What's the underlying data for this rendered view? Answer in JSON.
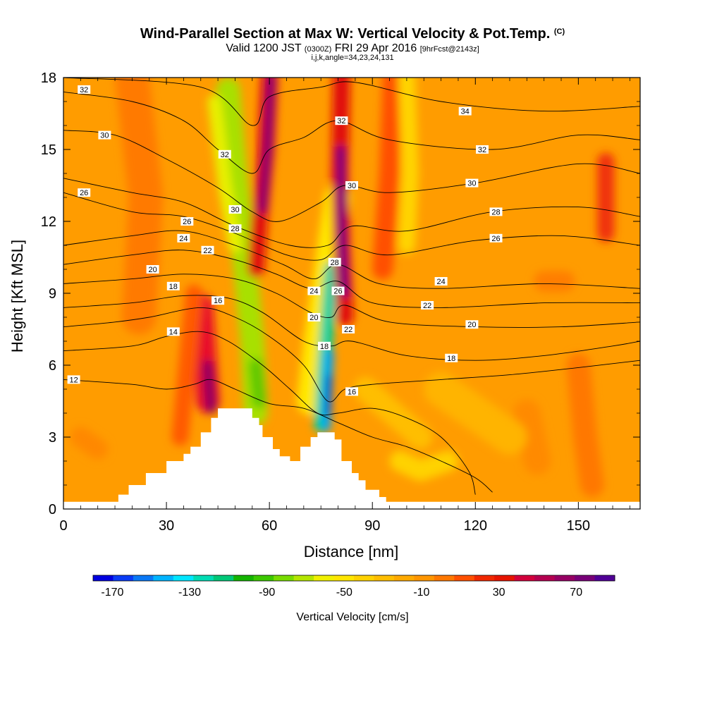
{
  "header": {
    "title": "Wind-Parallel Section at Max W: Vertical Velocity & Pot.Temp.",
    "copyright": "(C)",
    "valid_prefix": "Valid 1200 JST",
    "valid_utc": "(0300Z)",
    "valid_date": "FRI 29 Apr 2016",
    "forecast": "[9hrFcst@2143z]",
    "indices": "i,j,k,angle=34,23,24,131"
  },
  "chart_data": {
    "type": "contour cross-section (filled vertical velocity + potential temperature isolines)",
    "x_axis": {
      "label": "Distance [nm]",
      "range": [
        0,
        168
      ],
      "ticks": [
        0,
        30,
        60,
        90,
        120,
        150
      ]
    },
    "y_axis": {
      "label": "Height [Kft MSL]",
      "range": [
        0,
        18
      ],
      "ticks": [
        0,
        3,
        6,
        9,
        12,
        15,
        18
      ]
    },
    "colorbar": {
      "label": "Vertical Velocity [cm/s]",
      "tick_labels": [
        "-170",
        "-130",
        "-90",
        "-50",
        "-10",
        "30",
        "70"
      ],
      "range": [
        -180,
        90
      ],
      "colors": [
        "#0000e0",
        "#0a3cf5",
        "#0a78f5",
        "#00b4ff",
        "#00e6ff",
        "#00dcb4",
        "#00c878",
        "#14b400",
        "#3cc800",
        "#78dc00",
        "#b4e600",
        "#f0f000",
        "#ffe600",
        "#ffd200",
        "#ffbe00",
        "#ffaa00",
        "#ff9600",
        "#ff7800",
        "#ff5000",
        "#f02800",
        "#e61400",
        "#d2003c",
        "#b40050",
        "#960064",
        "#780078",
        "#500096"
      ]
    },
    "terrain_kft": [
      [
        0,
        0.3
      ],
      [
        14,
        0.3
      ],
      [
        16,
        0.6
      ],
      [
        19,
        1.0
      ],
      [
        24,
        1.5
      ],
      [
        30,
        2.0
      ],
      [
        35,
        2.3
      ],
      [
        37,
        2.6
      ],
      [
        40,
        3.2
      ],
      [
        43,
        3.8
      ],
      [
        45,
        4.2
      ],
      [
        52,
        4.2
      ],
      [
        55,
        3.8
      ],
      [
        57,
        3.5
      ],
      [
        58,
        3.0
      ],
      [
        61,
        2.5
      ],
      [
        63,
        2.2
      ],
      [
        66,
        2.0
      ],
      [
        69,
        2.6
      ],
      [
        72,
        3.0
      ],
      [
        74,
        3.2
      ],
      [
        77,
        3.2
      ],
      [
        79,
        2.9
      ],
      [
        81,
        2.0
      ],
      [
        84,
        1.5
      ],
      [
        86,
        1.2
      ],
      [
        88,
        0.8
      ],
      [
        92,
        0.5
      ],
      [
        94,
        0.3
      ],
      [
        168,
        0.3
      ]
    ],
    "theta_isolines": [
      {
        "level": "12",
        "points": [
          [
            0,
            5.4
          ],
          [
            20,
            5.2
          ],
          [
            30,
            5.0
          ],
          [
            38,
            5.2
          ],
          [
            43,
            5.4
          ],
          [
            50,
            5.0
          ],
          [
            60,
            4.4
          ],
          [
            70,
            4.2
          ],
          [
            80,
            3.6
          ],
          [
            90,
            3.0
          ],
          [
            100,
            2.6
          ],
          [
            110,
            2.0
          ],
          [
            120,
            1.3
          ],
          [
            125,
            0.7
          ]
        ]
      },
      {
        "level": "14",
        "points": [
          [
            0,
            6.6
          ],
          [
            20,
            6.8
          ],
          [
            30,
            7.2
          ],
          [
            40,
            7.4
          ],
          [
            48,
            7.0
          ],
          [
            58,
            6.0
          ],
          [
            66,
            5.0
          ],
          [
            74,
            4.0
          ],
          [
            80,
            4.0
          ],
          [
            90,
            4.2
          ],
          [
            100,
            3.8
          ],
          [
            110,
            3.0
          ],
          [
            118,
            1.6
          ],
          [
            120,
            0.6
          ]
        ]
      },
      {
        "level": "16",
        "points": [
          [
            0,
            7.6
          ],
          [
            15,
            7.8
          ],
          [
            25,
            8.0
          ],
          [
            40,
            8.4
          ],
          [
            50,
            8.0
          ],
          [
            60,
            7.2
          ],
          [
            70,
            6.0
          ],
          [
            77,
            4.5
          ],
          [
            82,
            5.0
          ],
          [
            90,
            5.2
          ],
          [
            110,
            5.4
          ],
          [
            130,
            5.6
          ],
          [
            150,
            5.9
          ],
          [
            168,
            6.2
          ]
        ]
      },
      {
        "level": "18",
        "points": [
          [
            0,
            8.4
          ],
          [
            20,
            8.6
          ],
          [
            35,
            8.9
          ],
          [
            48,
            8.8
          ],
          [
            58,
            8.2
          ],
          [
            70,
            7.0
          ],
          [
            78,
            6.8
          ],
          [
            84,
            7.0
          ],
          [
            100,
            6.4
          ],
          [
            120,
            6.2
          ],
          [
            140,
            6.4
          ],
          [
            160,
            6.8
          ],
          [
            168,
            7.0
          ]
        ]
      },
      {
        "level": "20",
        "points": [
          [
            0,
            9.4
          ],
          [
            20,
            9.6
          ],
          [
            35,
            9.8
          ],
          [
            50,
            9.6
          ],
          [
            62,
            9.0
          ],
          [
            72,
            8.2
          ],
          [
            78,
            8.0
          ],
          [
            82,
            8.5
          ],
          [
            95,
            7.8
          ],
          [
            120,
            7.6
          ],
          [
            145,
            7.6
          ],
          [
            168,
            7.8
          ]
        ]
      },
      {
        "level": "22",
        "points": [
          [
            0,
            10.2
          ],
          [
            20,
            10.6
          ],
          [
            35,
            10.8
          ],
          [
            50,
            10.4
          ],
          [
            62,
            9.8
          ],
          [
            72,
            9.2
          ],
          [
            80,
            9.5
          ],
          [
            90,
            8.6
          ],
          [
            110,
            8.4
          ],
          [
            140,
            8.6
          ],
          [
            168,
            8.6
          ]
        ]
      },
      {
        "level": "24",
        "points": [
          [
            0,
            11.0
          ],
          [
            20,
            11.4
          ],
          [
            35,
            11.6
          ],
          [
            50,
            11.0
          ],
          [
            64,
            10.2
          ],
          [
            73,
            9.6
          ],
          [
            80,
            10.2
          ],
          [
            92,
            9.4
          ],
          [
            110,
            9.2
          ],
          [
            140,
            9.4
          ],
          [
            168,
            9.2
          ]
        ]
      },
      {
        "level": "26",
        "points": [
          [
            0,
            13.2
          ],
          [
            20,
            12.4
          ],
          [
            35,
            12.2
          ],
          [
            50,
            11.5
          ],
          [
            65,
            10.6
          ],
          [
            75,
            10.4
          ],
          [
            82,
            11.0
          ],
          [
            95,
            10.6
          ],
          [
            120,
            11.2
          ],
          [
            145,
            11.4
          ],
          [
            168,
            11.0
          ]
        ]
      },
      {
        "level": "28",
        "points": [
          [
            0,
            13.8
          ],
          [
            20,
            13.2
          ],
          [
            35,
            12.8
          ],
          [
            50,
            11.8
          ],
          [
            66,
            11.0
          ],
          [
            77,
            11.0
          ],
          [
            84,
            11.8
          ],
          [
            100,
            11.6
          ],
          [
            125,
            12.4
          ],
          [
            150,
            12.6
          ],
          [
            168,
            12.2
          ]
        ]
      },
      {
        "level": "30",
        "points": [
          [
            0,
            15.8
          ],
          [
            15,
            15.6
          ],
          [
            30,
            14.6
          ],
          [
            45,
            13.4
          ],
          [
            55,
            12.4
          ],
          [
            63,
            12.0
          ],
          [
            75,
            12.8
          ],
          [
            82,
            13.5
          ],
          [
            95,
            13.2
          ],
          [
            120,
            13.6
          ],
          [
            150,
            14.4
          ],
          [
            168,
            14.0
          ]
        ]
      },
      {
        "level": "32",
        "points": [
          [
            0,
            17.4
          ],
          [
            20,
            17.0
          ],
          [
            35,
            16.2
          ],
          [
            45,
            15.0
          ],
          [
            55,
            14.0
          ],
          [
            60,
            15.0
          ],
          [
            70,
            15.5
          ],
          [
            80,
            16.2
          ],
          [
            95,
            15.4
          ],
          [
            125,
            15.0
          ],
          [
            150,
            15.6
          ],
          [
            168,
            15.4
          ]
        ]
      },
      {
        "level": "34",
        "points": [
          [
            0,
            18.0
          ],
          [
            40,
            17.6
          ],
          [
            55,
            16.0
          ],
          [
            60,
            17.2
          ],
          [
            75,
            17.6
          ],
          [
            85,
            17.8
          ],
          [
            110,
            17.0
          ],
          [
            140,
            16.6
          ],
          [
            168,
            16.8
          ]
        ]
      }
    ],
    "theta_label_positions": [
      {
        "text": "32",
        "x": 6,
        "y": 17.5
      },
      {
        "text": "30",
        "x": 12,
        "y": 15.6
      },
      {
        "text": "26",
        "x": 6,
        "y": 13.2
      },
      {
        "text": "32",
        "x": 47,
        "y": 14.8
      },
      {
        "text": "30",
        "x": 50,
        "y": 12.5
      },
      {
        "text": "26",
        "x": 36,
        "y": 12.0
      },
      {
        "text": "28",
        "x": 50,
        "y": 11.7
      },
      {
        "text": "24",
        "x": 35,
        "y": 11.3
      },
      {
        "text": "22",
        "x": 42,
        "y": 10.8
      },
      {
        "text": "20",
        "x": 26,
        "y": 10.0
      },
      {
        "text": "18",
        "x": 32,
        "y": 9.3
      },
      {
        "text": "16",
        "x": 45,
        "y": 8.7
      },
      {
        "text": "14",
        "x": 32,
        "y": 7.4
      },
      {
        "text": "12",
        "x": 3,
        "y": 5.4
      },
      {
        "text": "32",
        "x": 81,
        "y": 16.2
      },
      {
        "text": "30",
        "x": 84,
        "y": 13.5
      },
      {
        "text": "28",
        "x": 79,
        "y": 10.3
      },
      {
        "text": "24",
        "x": 73,
        "y": 9.1
      },
      {
        "text": "26",
        "x": 80,
        "y": 9.1
      },
      {
        "text": "20",
        "x": 73,
        "y": 8.0
      },
      {
        "text": "22",
        "x": 83,
        "y": 7.5
      },
      {
        "text": "18",
        "x": 76,
        "y": 6.8
      },
      {
        "text": "16",
        "x": 84,
        "y": 4.9
      },
      {
        "text": "34",
        "x": 117,
        "y": 16.6
      },
      {
        "text": "32",
        "x": 122,
        "y": 15.0
      },
      {
        "text": "30",
        "x": 119,
        "y": 13.6
      },
      {
        "text": "28",
        "x": 126,
        "y": 12.4
      },
      {
        "text": "26",
        "x": 126,
        "y": 11.3
      },
      {
        "text": "24",
        "x": 110,
        "y": 9.5
      },
      {
        "text": "22",
        "x": 106,
        "y": 8.5
      },
      {
        "text": "20",
        "x": 119,
        "y": 7.7
      },
      {
        "text": "18",
        "x": 113,
        "y": 6.3
      }
    ],
    "velocity_bands": [
      {
        "name": "strong downdraft lee of first ridge",
        "x_center": 77,
        "y_bottom": 3.2,
        "y_top": 11.0,
        "min_cm_s": -170
      },
      {
        "name": "updraft core",
        "x_center": 81,
        "y_bottom": 6.0,
        "y_top": 18.0,
        "max_cm_s": 80
      },
      {
        "name": "updraft upper left",
        "x_center": 58,
        "y_bottom": 10.0,
        "y_top": 18.0,
        "max_cm_s": 80
      },
      {
        "name": "downdraft tilted band",
        "x_center": 52,
        "y_bottom": 3.5,
        "y_top": 16.0,
        "min_cm_s": -70
      },
      {
        "name": "windward updraft",
        "x_center": 42,
        "y_bottom": 4.0,
        "y_top": 8.0,
        "max_cm_s": 70
      },
      {
        "name": "updraft far right",
        "x_center": 158,
        "y_bottom": 11.0,
        "y_top": 15.0,
        "max_cm_s": 40
      }
    ]
  }
}
